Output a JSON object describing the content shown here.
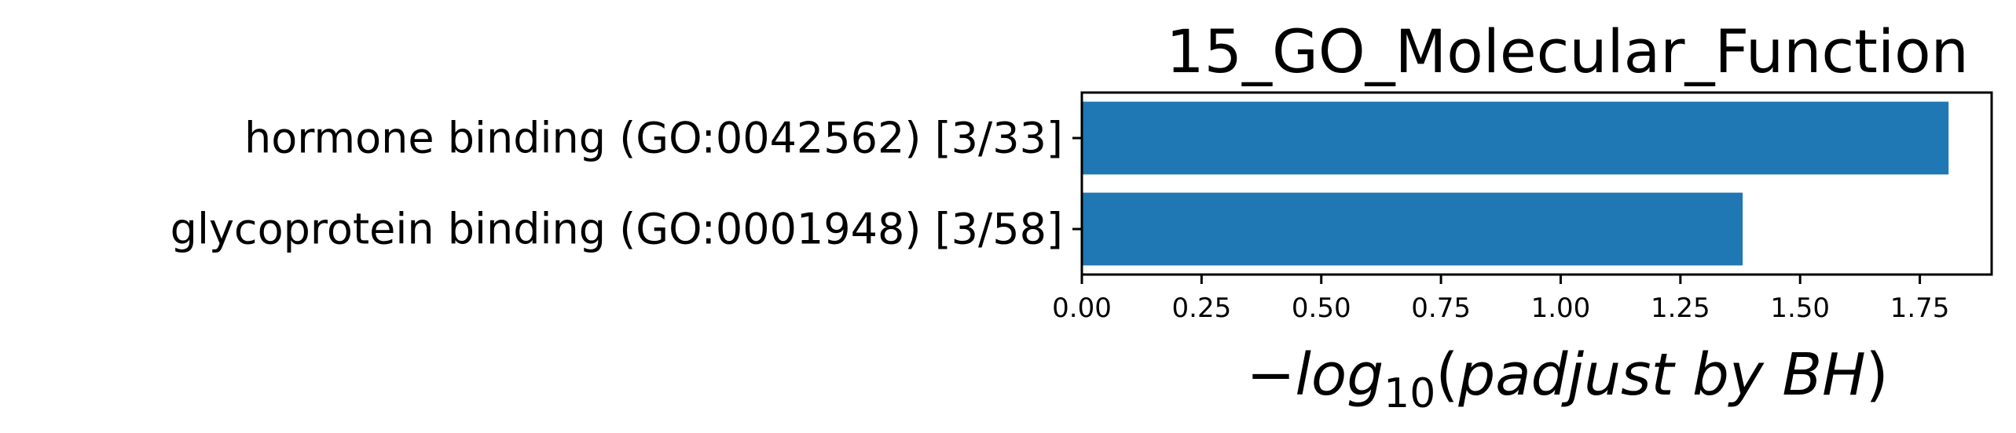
{
  "chart_data": {
    "type": "bar",
    "orientation": "horizontal",
    "title": "15_GO_Molecular_Function",
    "categories": [
      "hormone binding (GO:0042562) [3/33]",
      "glycoprotein binding (GO:0001948) [3/58]"
    ],
    "values": [
      1.81,
      1.38
    ],
    "xlabel": {
      "minus": "−",
      "base": "log",
      "sub": "10",
      "open": "(",
      "body": "padjust by BH",
      "close": ")"
    },
    "ylabel": "",
    "xlim": [
      0,
      1.9
    ],
    "xticks": [
      0.0,
      0.25,
      0.5,
      0.75,
      1.0,
      1.25,
      1.5,
      1.75
    ],
    "xtick_labels": [
      "0.00",
      "0.25",
      "0.50",
      "0.75",
      "1.00",
      "1.25",
      "1.50",
      "1.75"
    ],
    "bar_color": "#1f77b4",
    "grid": false
  }
}
